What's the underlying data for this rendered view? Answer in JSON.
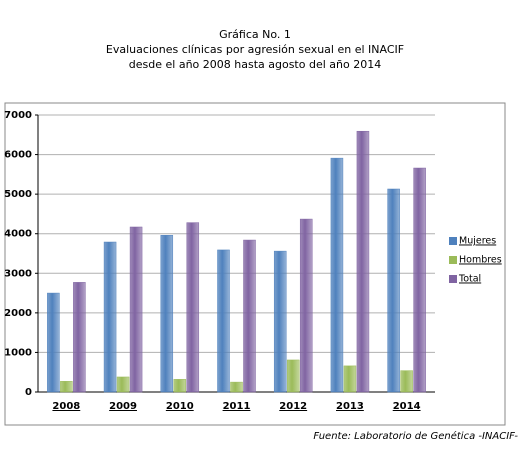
{
  "chart_data": {
    "type": "bar",
    "title": [
      "Gráfica No. 1",
      "Evaluaciones clínicas por agresión sexual en el INACIF",
      "desde el año 2008 hasta agosto del año 2014"
    ],
    "categories": [
      "2008",
      "2009",
      "2010",
      "2011",
      "2012",
      "2013",
      "2014"
    ],
    "series": [
      {
        "name": "Mujeres",
        "color": "#4f81bd",
        "values": [
          2500,
          3790,
          3960,
          3590,
          3560,
          5910,
          5130
        ]
      },
      {
        "name": "Hombres",
        "color": "#9bbb59",
        "values": [
          270,
          380,
          320,
          250,
          810,
          660,
          540
        ]
      },
      {
        "name": "Total",
        "color": "#8064a2",
        "values": [
          2770,
          4170,
          4280,
          3840,
          4370,
          6590,
          5660
        ]
      }
    ],
    "ylim": [
      0,
      7000
    ],
    "yticks": [
      0,
      1000,
      2000,
      3000,
      4000,
      5000,
      6000,
      7000
    ],
    "grid": true,
    "source": "Fuente: Laboratorio de Genética -INACIF-"
  }
}
